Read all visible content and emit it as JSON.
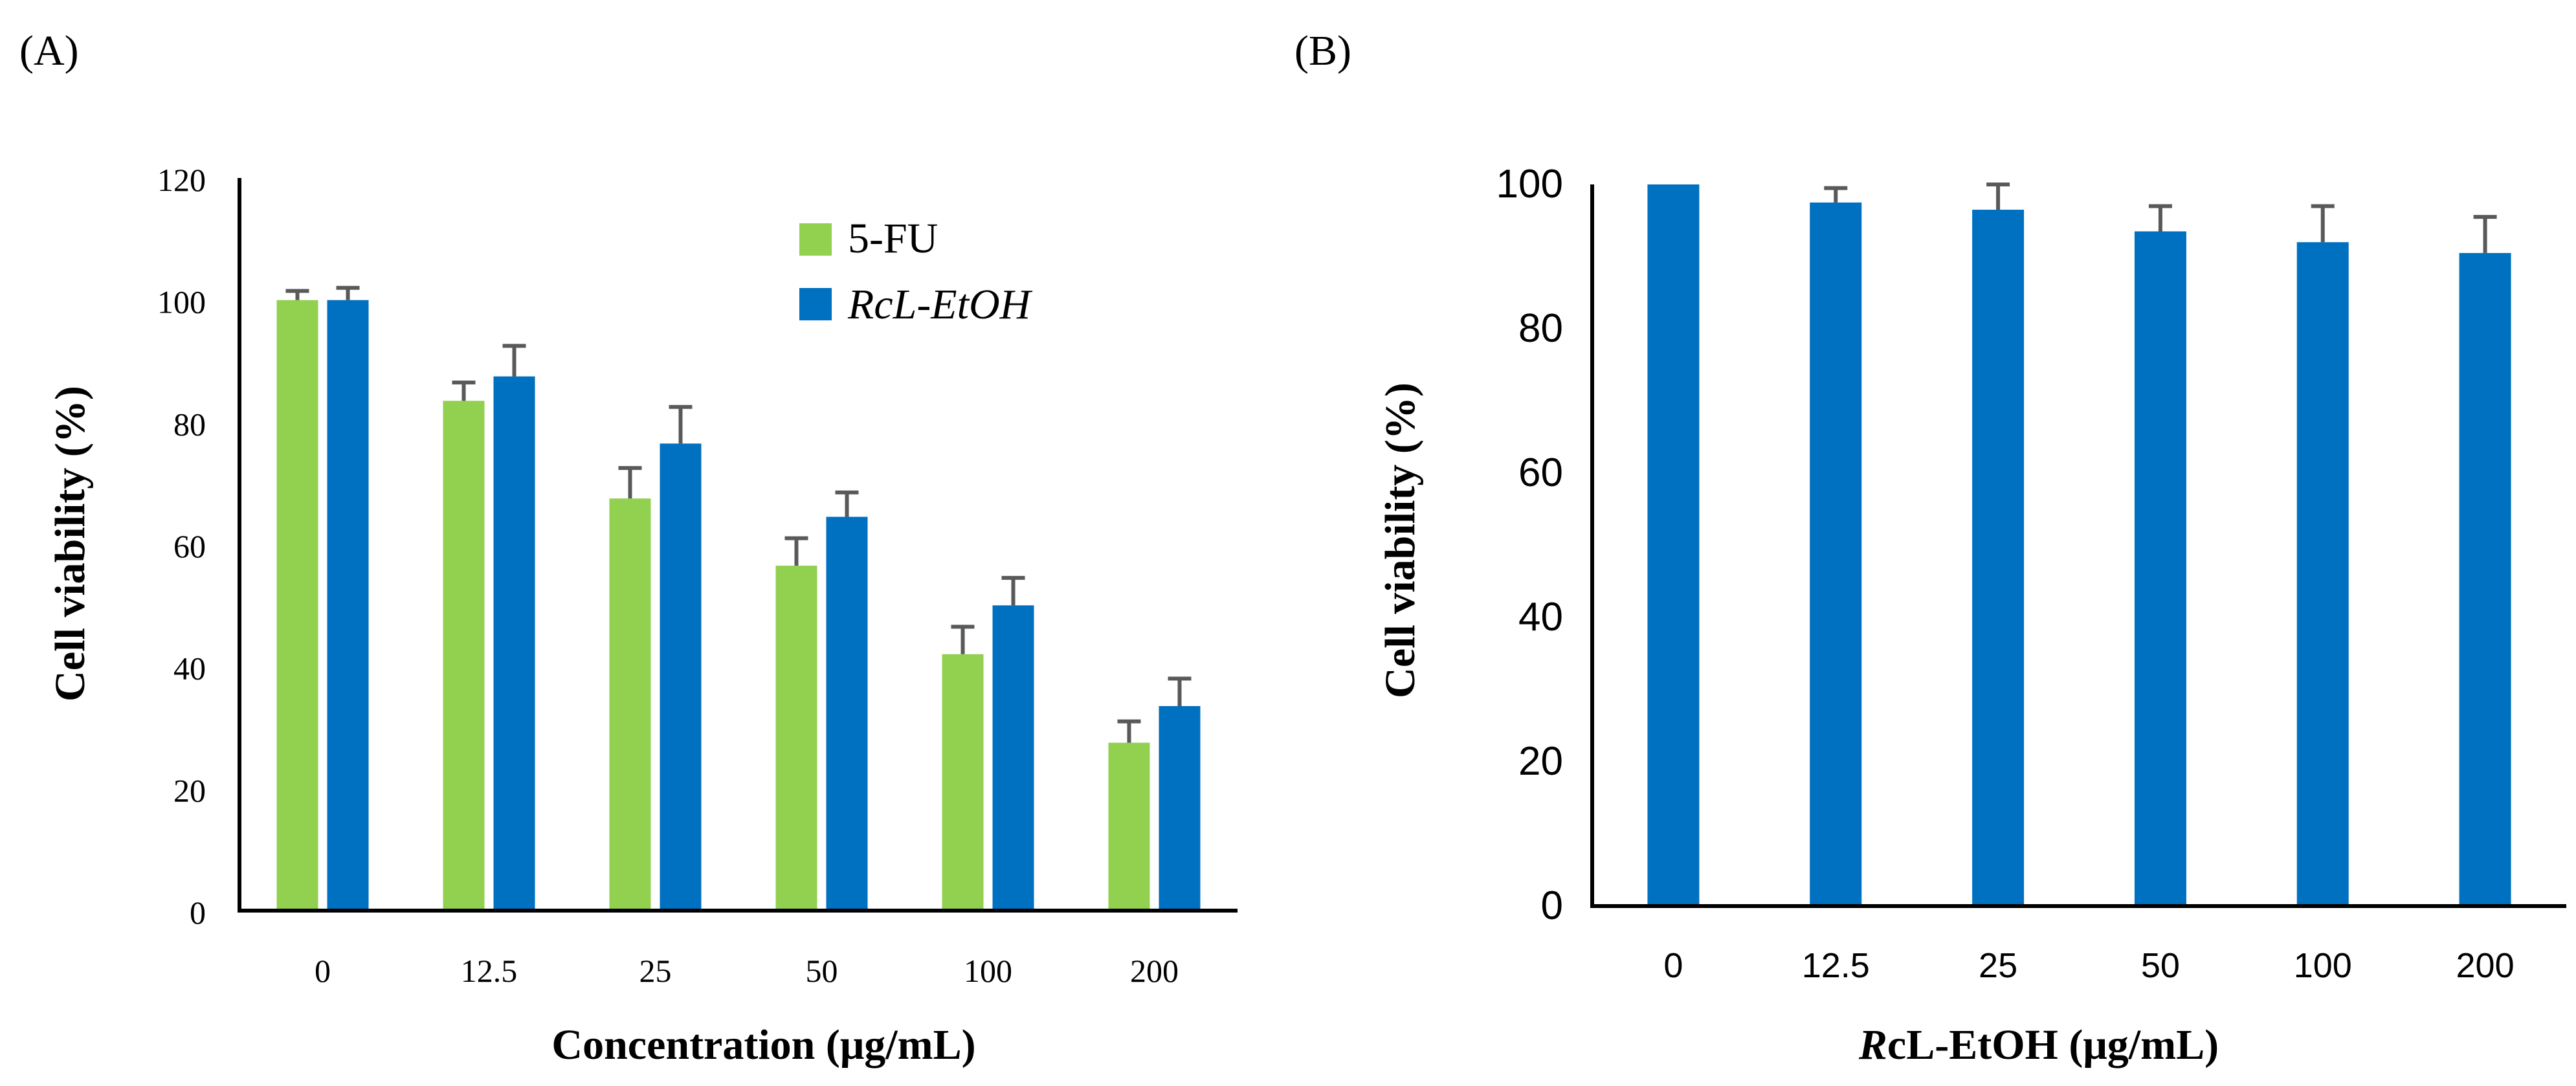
{
  "chart_data": [
    {
      "type": "bar",
      "panel_label": "(A)",
      "title": "",
      "xlabel": "Concentration (μg/mL)",
      "ylabel": "Cell viability (%)",
      "ylim": [
        0,
        120
      ],
      "yticks": [
        0,
        20,
        40,
        60,
        80,
        100,
        120
      ],
      "categories": [
        "0",
        "12.5",
        "25",
        "50",
        "100",
        "200"
      ],
      "series": [
        {
          "name": "5-FU",
          "color": "#92d050",
          "values": [
            100,
            83.5,
            67.5,
            56.5,
            42,
            27.5
          ],
          "errors": [
            1.5,
            3,
            5,
            4.5,
            4.5,
            3.5
          ]
        },
        {
          "name": "RcL-EtOH",
          "color": "#0070c0",
          "values": [
            100,
            87.5,
            76.5,
            64.5,
            50,
            33.5
          ],
          "errors": [
            2,
            5,
            6,
            4,
            4.5,
            4.5
          ]
        }
      ],
      "legend_position": "top-right",
      "grid": false
    },
    {
      "type": "bar",
      "panel_label": "(B)",
      "title": "",
      "xlabel_prefix": "R",
      "xlabel_rest": "cL-EtOH (μg/mL)",
      "ylabel": "Cell viability (%)",
      "ylim": [
        0,
        100
      ],
      "yticks": [
        0,
        20,
        40,
        60,
        80,
        100
      ],
      "categories": [
        "0",
        "12.5",
        "25",
        "50",
        "100",
        "200"
      ],
      "series": [
        {
          "name": "RcL-EtOH",
          "color": "#0070c0",
          "values": [
            100,
            97.5,
            96.5,
            93.5,
            92,
            90.5
          ],
          "errors": [
            0,
            2,
            3.5,
            3.5,
            5,
            5
          ]
        }
      ],
      "grid": false
    }
  ]
}
